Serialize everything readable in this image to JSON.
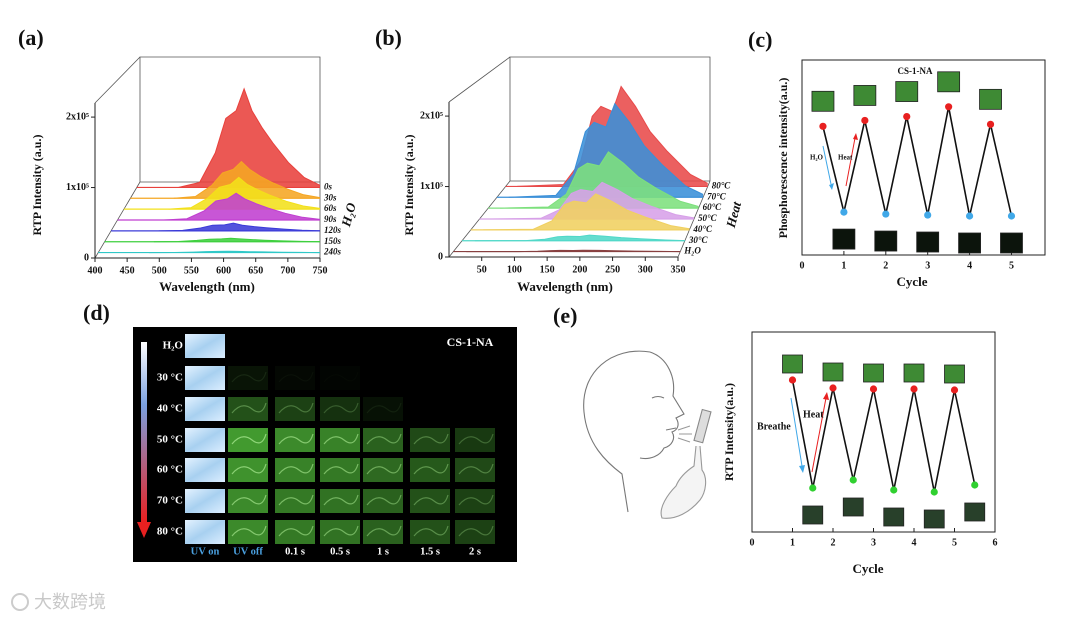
{
  "panel_labels": [
    "(a)",
    "(b)",
    "(c)",
    "(d)",
    "(e)"
  ],
  "chart_data": [
    {
      "type": "waterfall",
      "x_label": "Wavelength (nm)",
      "y_label": "RTP Intensity (a.u.)",
      "z_label": "H₂O",
      "x": [
        480,
        520,
        550,
        570,
        590,
        605,
        620,
        640,
        660,
        690,
        720,
        750
      ],
      "xlim": [
        400,
        750
      ],
      "xticks": [
        400,
        450,
        500,
        550,
        600,
        650,
        700,
        750
      ],
      "ylim": [
        0,
        220000
      ],
      "yticks": [
        0,
        {
          "value": 100000,
          "label": "1x10⁵"
        },
        {
          "value": 200000,
          "label": "2x10⁵"
        }
      ],
      "series": [
        {
          "name": "0s",
          "color": "#e8413c",
          "values": [
            0,
            7000,
            49000,
            98000,
            109000,
            140000,
            109000,
            84000,
            63000,
            35000,
            14000,
            3000
          ]
        },
        {
          "name": "30s",
          "color": "#f5a623",
          "values": [
            0,
            2600,
            18000,
            36000,
            41000,
            52000,
            41000,
            31000,
            23000,
            13000,
            5000,
            1000
          ]
        },
        {
          "name": "60s",
          "color": "#f3e01a",
          "values": [
            0,
            2200,
            16000,
            31000,
            35000,
            45000,
            35000,
            27000,
            20000,
            11000,
            4500,
            1000
          ]
        },
        {
          "name": "90s",
          "color": "#c03fd0",
          "values": [
            0,
            1900,
            13000,
            27000,
            30000,
            38000,
            30000,
            23000,
            17000,
            9500,
            3800,
            800
          ]
        },
        {
          "name": "120s",
          "color": "#3b3bd8",
          "values": [
            0,
            600,
            4000,
            8000,
            8500,
            11000,
            8000,
            6000,
            4500,
            2500,
            1000,
            200
          ]
        },
        {
          "name": "150s",
          "color": "#3ecf3e",
          "values": [
            0,
            300,
            1800,
            3500,
            4000,
            5000,
            4000,
            3000,
            2200,
            1200,
            500,
            100
          ]
        },
        {
          "name": "240s",
          "color": "#30c8c8",
          "values": [
            0,
            100,
            700,
            1400,
            1600,
            2000,
            1600,
            1200,
            900,
            500,
            200,
            0
          ]
        }
      ]
    },
    {
      "type": "waterfall",
      "x_label": "Wavelength (nm)",
      "y_label": "RTP Intensity (a.u.)",
      "z_label": "Heat",
      "x": [
        20,
        100,
        130,
        150,
        165,
        185,
        200,
        225,
        250,
        280,
        320,
        350
      ],
      "xlim": [
        0,
        350
      ],
      "xticks": [
        50,
        100,
        150,
        200,
        250,
        300,
        350
      ],
      "ylim": [
        0,
        220000
      ],
      "yticks": [
        0,
        {
          "value": 100000,
          "label": "1x10⁵"
        },
        {
          "value": 200000,
          "label": "2x10⁵"
        }
      ],
      "series": [
        {
          "name": "80°C",
          "color": "#e84a4a",
          "values": [
            0,
            2800,
            35500,
            99400,
            113600,
            106500,
            142000,
            113600,
            78100,
            49700,
            17000,
            4300
          ]
        },
        {
          "name": "70°C",
          "color": "#3a8fd8",
          "values": [
            0,
            2700,
            33200,
            93100,
            106400,
            99700,
            133000,
            106400,
            73200,
            46500,
            16000,
            4000
          ]
        },
        {
          "name": "60°C",
          "color": "#7de07d",
          "values": [
            0,
            1600,
            20000,
            56000,
            64000,
            60000,
            80000,
            64000,
            44000,
            28000,
            9600,
            2400
          ]
        },
        {
          "name": "50°C",
          "color": "#d7a0e8",
          "values": [
            0,
            1000,
            13000,
            36400,
            41600,
            39000,
            52000,
            41600,
            28600,
            18200,
            6200,
            1600
          ]
        },
        {
          "name": "40°C",
          "color": "#f0d060",
          "values": [
            0,
            1000,
            12800,
            35700,
            40800,
            38200,
            51000,
            40800,
            28000,
            17900,
            6100,
            1500
          ]
        },
        {
          "name": "30°C",
          "color": "#50d8c8",
          "values": [
            0,
            200,
            2000,
            5600,
            6400,
            6000,
            8000,
            6400,
            4400,
            2800,
            1000,
            200
          ]
        },
        {
          "name": "H₂O",
          "color": "#884040",
          "values": [
            0,
            0,
            500,
            1400,
            1600,
            1500,
            2000,
            1600,
            1100,
            700,
            200,
            0
          ]
        }
      ]
    },
    {
      "type": "cycle",
      "title": "CS-1-NA",
      "annotations": [
        "H₂O",
        "Heat"
      ],
      "x_label": "Cycle",
      "y_label": "Phosphorescence intensity(a.u.)",
      "x": [
        0.5,
        1,
        1.5,
        2,
        2.5,
        3,
        3.5,
        4,
        4.5,
        5
      ],
      "values": [
        0.66,
        0.22,
        0.69,
        0.21,
        0.71,
        0.205,
        0.76,
        0.2,
        0.67,
        0.2
      ],
      "marker_colors": [
        "#e82020",
        "#40a8e8",
        "#e82020",
        "#40a8e8",
        "#e82020",
        "#40a8e8",
        "#e82020",
        "#40a8e8",
        "#e82020",
        "#40a8e8"
      ],
      "xlim": [
        0,
        5.8
      ],
      "xticks": [
        0,
        1,
        2,
        3,
        4,
        5
      ],
      "ylim": [
        0,
        1
      ]
    },
    {
      "type": "cycle",
      "annotations": [
        "Breathe",
        "Heat"
      ],
      "x_label": "Cycle",
      "y_label": "RTP Intensity(a.u.)",
      "x": [
        1,
        1.5,
        2,
        2.5,
        3,
        3.5,
        4,
        4.5,
        5,
        5.5
      ],
      "values": [
        0.76,
        0.22,
        0.72,
        0.26,
        0.715,
        0.21,
        0.715,
        0.2,
        0.71,
        0.235
      ],
      "marker_colors": [
        "#e82020",
        "#30d030",
        "#e82020",
        "#30d030",
        "#e82020",
        "#30d030",
        "#e82020",
        "#30d030",
        "#e82020",
        "#30d030"
      ],
      "xlim": [
        0,
        6
      ],
      "xticks": [
        0,
        1,
        2,
        3,
        4,
        5,
        6
      ],
      "ylim": [
        0,
        1
      ]
    }
  ],
  "image_grid": {
    "title": "CS-1-NA",
    "rows": [
      "H₂O",
      "30 °C",
      "40 °C",
      "50 °C",
      "60 °C",
      "70 °C",
      "80 °C"
    ],
    "columns": [
      "UV on",
      "UV off",
      "0.1 s",
      "0.5 s",
      "1 s",
      "1.5 s",
      "2 s"
    ]
  },
  "watermark": "大数跨境"
}
